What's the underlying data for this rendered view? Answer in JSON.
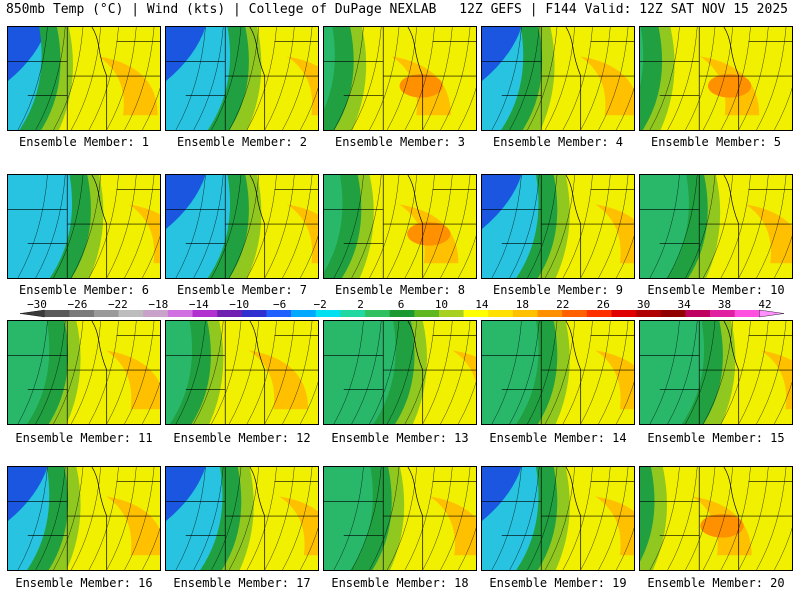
{
  "header": {
    "left": "850mb Temp (°C) | Wind (kts) | College of DuPage NEXLAB",
    "right": "12Z GEFS | F144 Valid: 12Z SAT NOV 15 2025"
  },
  "member_label_prefix": "Ensemble Member: ",
  "members": [
    {
      "id": 1,
      "label": "Ensemble Member: 1",
      "warm_front": 0.4,
      "cold_strength": 0.85
    },
    {
      "id": 2,
      "label": "Ensemble Member: 2",
      "warm_front": 0.6,
      "cold_strength": 0.75
    },
    {
      "id": 3,
      "label": "Ensemble Member: 3",
      "warm_front": 0.25,
      "cold_strength": 0.3
    },
    {
      "id": 4,
      "label": "Ensemble Member: 4",
      "warm_front": 0.45,
      "cold_strength": 0.85
    },
    {
      "id": 5,
      "label": "Ensemble Member: 5",
      "warm_front": 0.2,
      "cold_strength": 0.25
    },
    {
      "id": 6,
      "label": "Ensemble Member: 6",
      "warm_front": 0.6,
      "cold_strength": 0.65
    },
    {
      "id": 7,
      "label": "Ensemble Member: 7",
      "warm_front": 0.6,
      "cold_strength": 0.8
    },
    {
      "id": 8,
      "label": "Ensemble Member: 8",
      "warm_front": 0.3,
      "cold_strength": 0.4
    },
    {
      "id": 9,
      "label": "Ensemble Member: 9",
      "warm_front": 0.55,
      "cold_strength": 0.75
    },
    {
      "id": 10,
      "label": "Ensemble Member: 10",
      "warm_front": 0.5,
      "cold_strength": 0.6
    },
    {
      "id": 11,
      "label": "Ensemble Member: 11",
      "warm_front": 0.45,
      "cold_strength": 0.45
    },
    {
      "id": 12,
      "label": "Ensemble Member: 12",
      "warm_front": 0.35,
      "cold_strength": 0.35
    },
    {
      "id": 13,
      "label": "Ensemble Member: 13",
      "warm_front": 0.65,
      "cold_strength": 0.55
    },
    {
      "id": 14,
      "label": "Ensemble Member: 14",
      "warm_front": 0.55,
      "cold_strength": 0.6
    },
    {
      "id": 15,
      "label": "Ensemble Member: 15",
      "warm_front": 0.6,
      "cold_strength": 0.6
    },
    {
      "id": 16,
      "label": "Ensemble Member: 16",
      "warm_front": 0.45,
      "cold_strength": 0.8
    },
    {
      "id": 17,
      "label": "Ensemble Member: 17",
      "warm_front": 0.55,
      "cold_strength": 0.75
    },
    {
      "id": 18,
      "label": "Ensemble Member: 18",
      "warm_front": 0.5,
      "cold_strength": 0.6
    },
    {
      "id": 19,
      "label": "Ensemble Member: 19",
      "warm_front": 0.55,
      "cold_strength": 0.75
    },
    {
      "id": 20,
      "label": "Ensemble Member: 20",
      "warm_front": 0.15,
      "cold_strength": 0.1
    }
  ],
  "colorbar": {
    "units": "°C",
    "ticks": [
      "−30",
      "−26",
      "−22",
      "−18",
      "−14",
      "−10",
      "−6",
      "−2",
      "2",
      "6",
      "10",
      "14",
      "18",
      "22",
      "26",
      "30",
      "34",
      "38",
      "42"
    ],
    "colors": [
      "#3a3a3a",
      "#5a5a5a",
      "#7a7a7a",
      "#9a9a9a",
      "#bdbdbd",
      "#c8a2c8",
      "#d070e0",
      "#b030d0",
      "#7020b0",
      "#3030d0",
      "#2060ff",
      "#00a8ff",
      "#00e0f0",
      "#20d8a0",
      "#30c060",
      "#1a9a30",
      "#60b820",
      "#a8d020",
      "#ffff00",
      "#ffe000",
      "#ffc000",
      "#ff9000",
      "#ff6000",
      "#ff3000",
      "#e00000",
      "#b00000",
      "#900000",
      "#c00060",
      "#e020a0",
      "#ff50e0",
      "#ff90ff"
    ]
  }
}
